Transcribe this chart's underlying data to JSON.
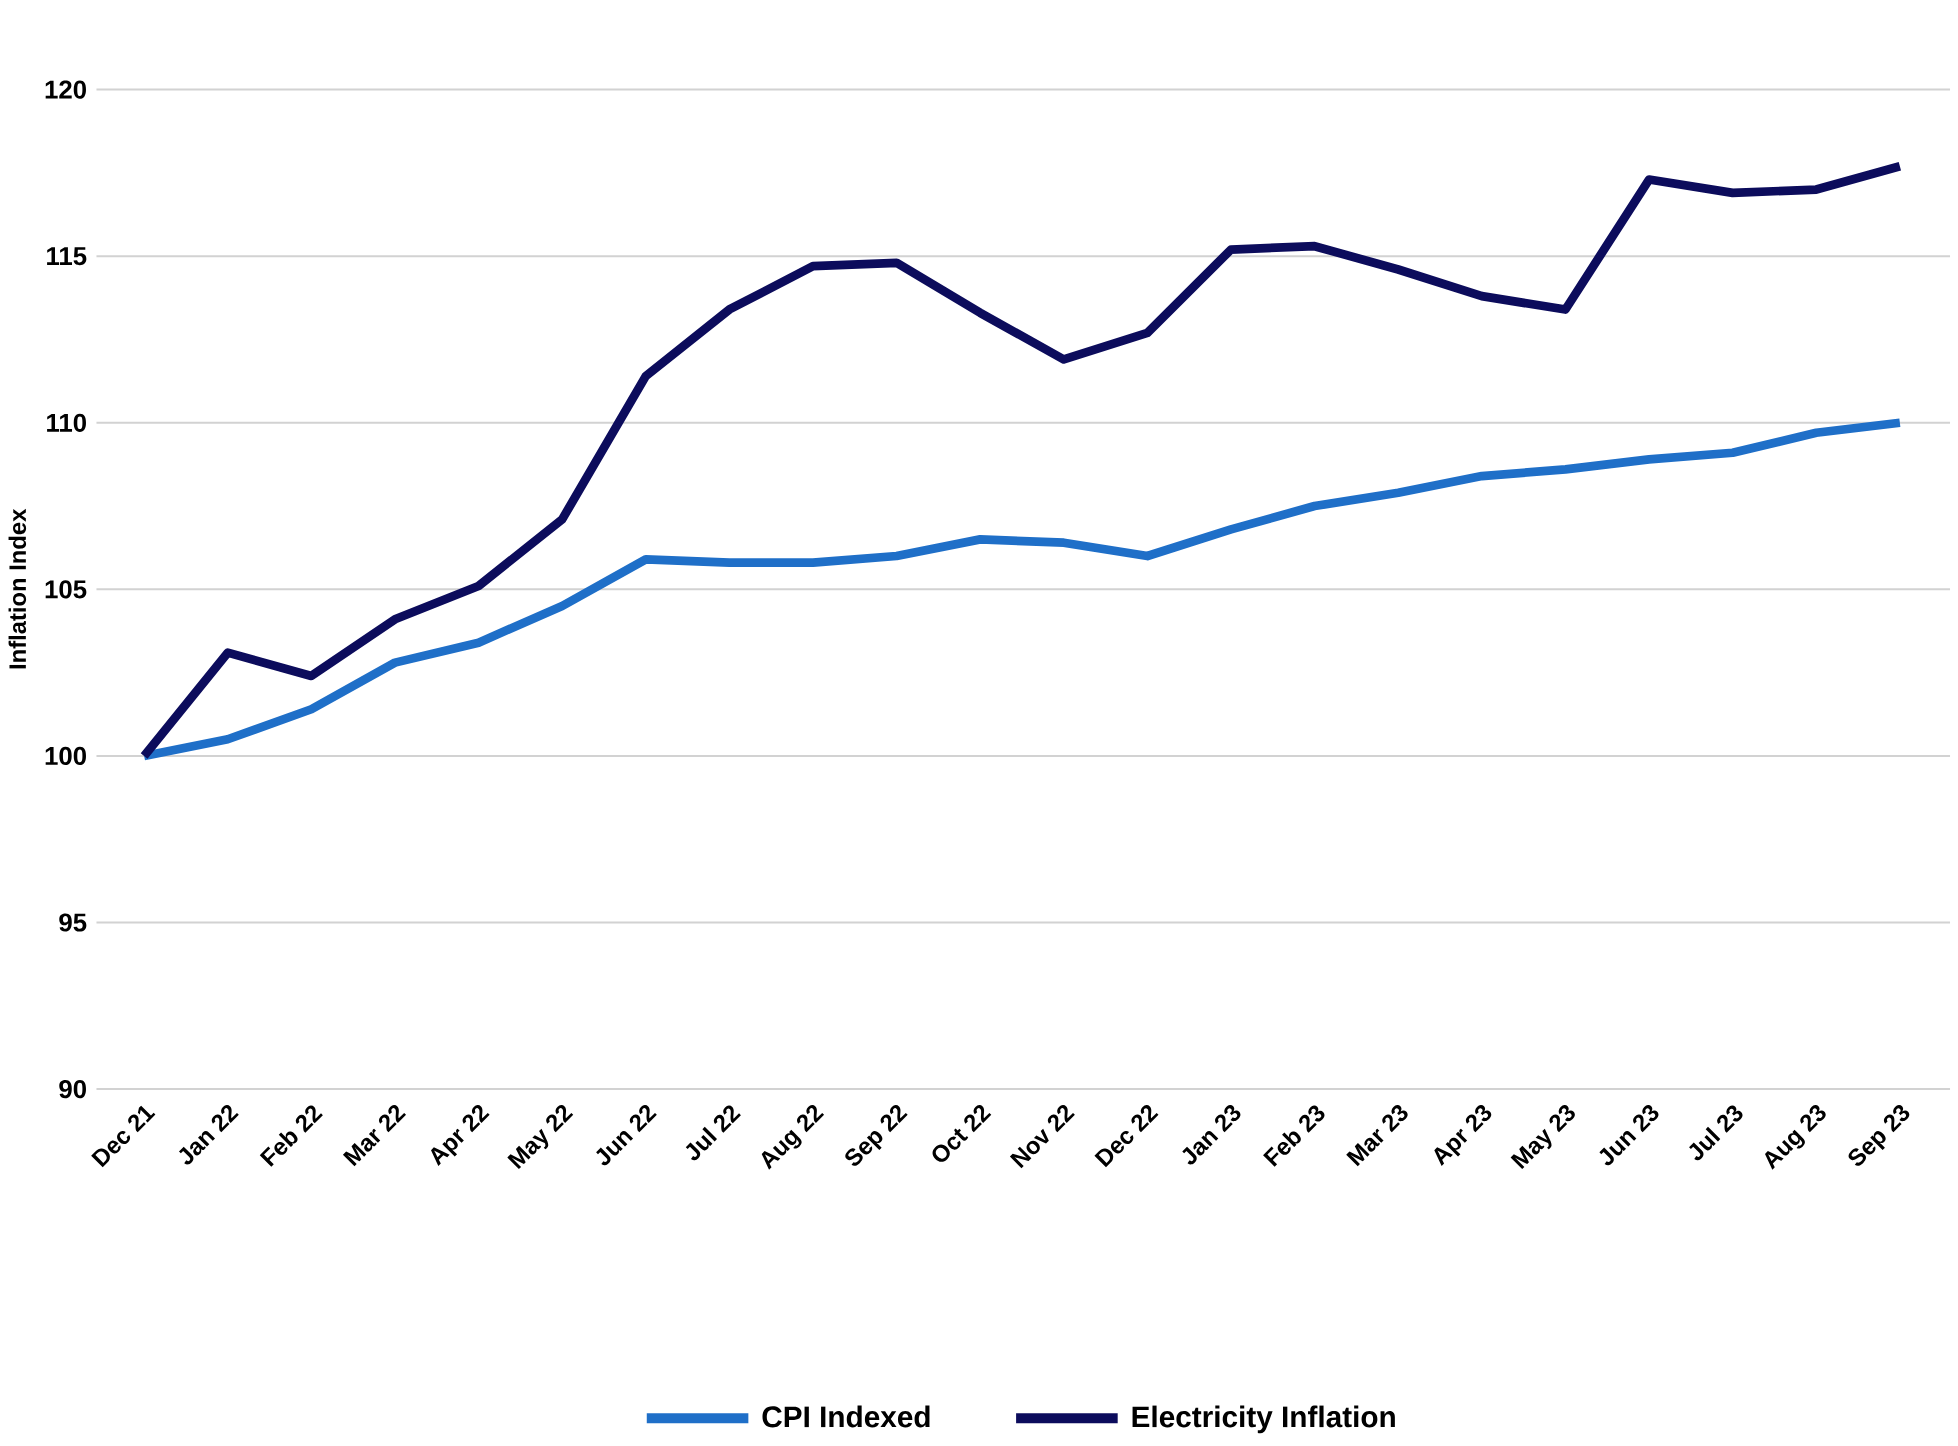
{
  "chart_data": {
    "type": "line",
    "ylabel": "Inflation Index",
    "categories": [
      "Dec 21",
      "Jan 22",
      "Feb 22",
      "Mar 22",
      "Apr 22",
      "May 22",
      "Jun 22",
      "Jul 22",
      "Aug 22",
      "Sep 22",
      "Oct 22",
      "Nov 22",
      "Dec 22",
      "Jan 23",
      "Feb 23",
      "Mar 23",
      "Apr 23",
      "May 23",
      "Jun 23",
      "Jul 23",
      "Aug 23",
      "Sep 23"
    ],
    "series": [
      {
        "name": "CPI Indexed",
        "color": "#1f6fc8",
        "values": [
          100,
          100.5,
          101.4,
          102.8,
          103.4,
          104.5,
          105.9,
          105.8,
          105.8,
          106.0,
          106.5,
          106.4,
          106.0,
          106.8,
          107.5,
          107.9,
          108.4,
          108.6,
          108.9,
          109.1,
          109.7,
          110.0
        ]
      },
      {
        "name": "Electricity Inflation",
        "color": "#0c0c5c",
        "values": [
          100,
          103.1,
          102.4,
          104.1,
          105.1,
          107.1,
          111.4,
          113.4,
          114.7,
          114.8,
          113.3,
          111.9,
          112.7,
          115.2,
          115.3,
          114.6,
          113.8,
          113.4,
          117.3,
          116.9,
          117.0,
          117.7
        ]
      }
    ],
    "ylim": [
      90,
      120
    ],
    "yticks": [
      90,
      95,
      100,
      105,
      110,
      115,
      120
    ],
    "grid": "y",
    "legend": "bottom",
    "line_style": "solid",
    "marker": "none"
  }
}
